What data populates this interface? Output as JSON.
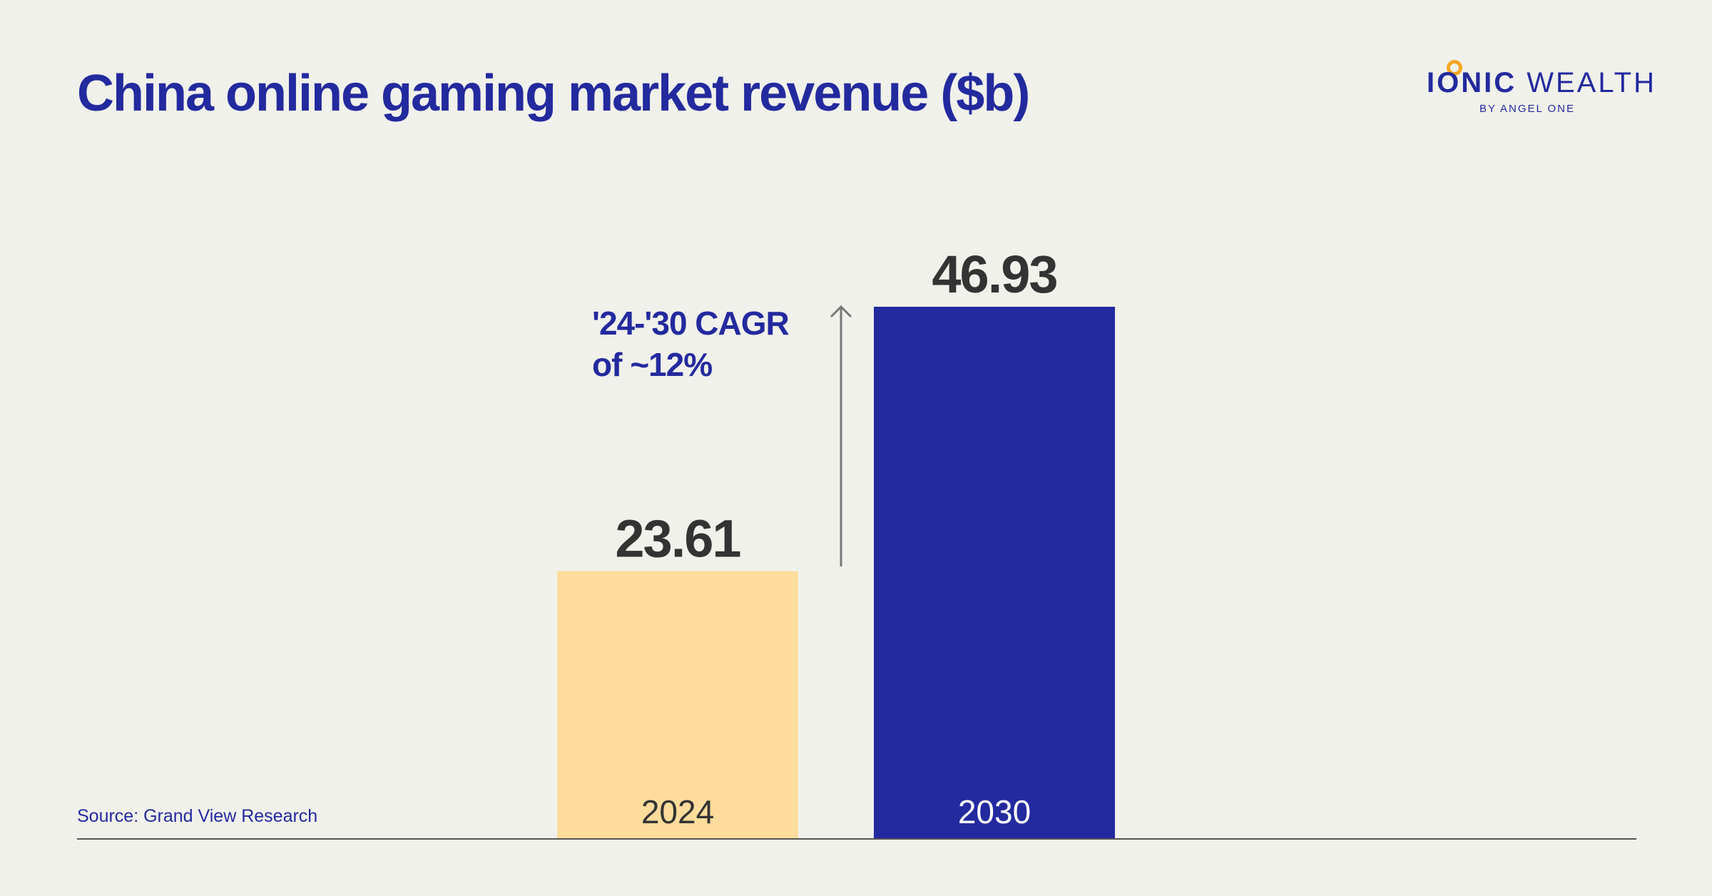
{
  "title": "China online gaming market revenue ($b)",
  "logo": {
    "main_bold": "IONIC",
    "main_light": "WEALTH",
    "sub": "BY ANGEL ONE"
  },
  "source": "Source: Grand View Research",
  "annotation": {
    "line1": "'24-'30 CAGR",
    "line2": "of ~12%"
  },
  "colors": {
    "title": "#232a9e",
    "bar_2024": "#fddc9c",
    "bar_2030": "#232aa0",
    "value_label": "#333333",
    "axis": "#555555",
    "arrow": "#777777",
    "logo_accent": "#f5a623"
  },
  "chart_data": {
    "type": "bar",
    "categories": [
      "2024",
      "2030"
    ],
    "values": [
      23.61,
      46.93
    ],
    "value_labels": [
      "23.61",
      "46.93"
    ],
    "title": "China online gaming market revenue ($b)",
    "xlabel": "",
    "ylabel": "",
    "grid": false,
    "legend": "none"
  }
}
